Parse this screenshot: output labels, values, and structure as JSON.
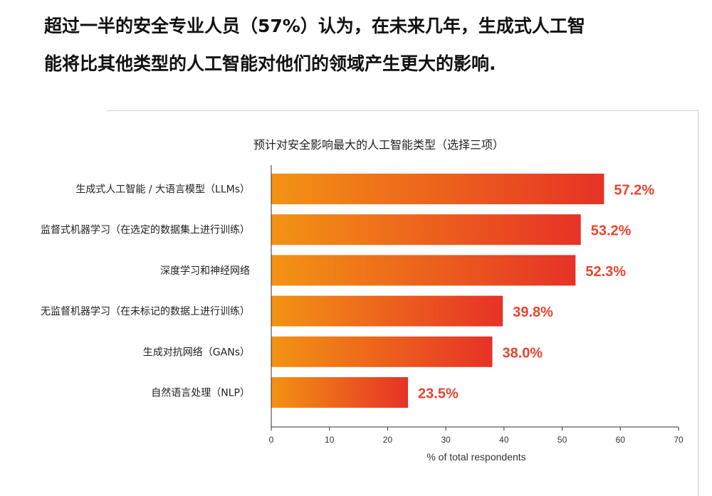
{
  "headline": {
    "line1": "超过一半的安全专业人员（57%）认为，在未来几年，生成式人工智",
    "line2": "能将比其他类型的人工智能对他们的领域产生更大的影响."
  },
  "chart_data": {
    "type": "bar",
    "orientation": "horizontal",
    "title": "预计对安全影响最大的人工智能类型（选择三项）",
    "xlabel": "% of total respondents",
    "ylabel": "",
    "xlim": [
      0,
      70
    ],
    "xticks": [
      0,
      10,
      20,
      30,
      40,
      50,
      60,
      70
    ],
    "grid": false,
    "categories": [
      "生成式人工智能 / 大语言模型（LLMs）",
      "监督式机器学习（在选定的数据集上进行训练）",
      "深度学习和神经网络",
      "无监督机器学习（在未标记的数据上进行训练）",
      "生成对抗网络（GANs）",
      "自然语言处理（NLP）"
    ],
    "values": [
      57.2,
      53.2,
      52.3,
      39.8,
      38.0,
      23.5
    ],
    "value_labels": [
      "57.2%",
      "53.2%",
      "52.3%",
      "39.8%",
      "38.0%",
      "23.5%"
    ],
    "colors": {
      "gradient_start": "#f39313",
      "gradient_end": "#e63226",
      "label": "#e8452c",
      "axis": "#333333"
    }
  }
}
